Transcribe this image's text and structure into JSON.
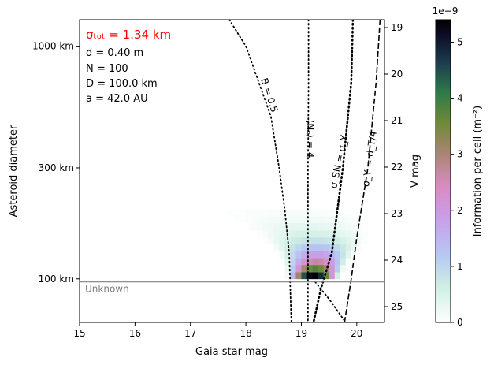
{
  "chart_data": {
    "type": "heatmap",
    "xlabel": "Gaia star mag",
    "ylabel": "Asteroid diameter",
    "right_ylabel": "V mag",
    "colorbar_label": "Information per cell (m⁻²)",
    "colorbar_exponent": "1e−9",
    "xlim": [
      15,
      20.5
    ],
    "xticks": [
      "15",
      "16",
      "17",
      "18",
      "19",
      "20"
    ],
    "ylim_km": [
      65,
      1300
    ],
    "y_log": true,
    "yticks": [
      {
        "value": 1000,
        "label": "1000 km"
      },
      {
        "value": 300,
        "label": "300 km"
      },
      {
        "value": 100,
        "label": "100 km"
      }
    ],
    "vmag_ticks": [
      "19",
      "20",
      "21",
      "22",
      "23",
      "24",
      "25"
    ],
    "colorbar_range": [
      0,
      5.4
    ],
    "colorbar_ticks": [
      "0",
      "1",
      "2",
      "3",
      "4",
      "5"
    ],
    "unknown_line": {
      "value_km": 97,
      "label": "Unknown"
    },
    "curves": [
      {
        "label": "B = 0.5",
        "style": "dotted",
        "points": [
          [
            17.7,
            1300
          ],
          [
            18.0,
            1000
          ],
          [
            18.45,
            500
          ],
          [
            18.6,
            300
          ],
          [
            18.7,
            200
          ],
          [
            18.78,
            130
          ],
          [
            18.82,
            65
          ]
        ]
      },
      {
        "label": "⟨Nₑ⟩ = 4",
        "style": "dotted",
        "points": [
          [
            19.13,
            1300
          ],
          [
            19.13,
            700
          ],
          [
            19.12,
            300
          ],
          [
            19.12,
            65
          ]
        ]
      },
      {
        "label": "σ_SN = σ_Y",
        "style": "dotted-bold",
        "points": [
          [
            19.93,
            1300
          ],
          [
            19.9,
            700
          ],
          [
            19.75,
            300
          ],
          [
            19.55,
            130
          ],
          [
            19.35,
            90
          ],
          [
            19.22,
            65
          ]
        ]
      },
      {
        "label": "σ_Y = d_T/4",
        "style": "dashed",
        "points": [
          [
            20.42,
            1300
          ],
          [
            20.35,
            700
          ],
          [
            20.2,
            300
          ],
          [
            20.0,
            150
          ],
          [
            19.9,
            100
          ],
          [
            19.78,
            65
          ]
        ]
      },
      {
        "label": "",
        "style": "dotted",
        "points": [
          [
            19.25,
            97
          ],
          [
            19.5,
            82
          ],
          [
            19.8,
            65
          ]
        ]
      }
    ],
    "heat_rows": [
      {
        "d": 100,
        "center": 19.22,
        "width": 0.5,
        "peak": 5.4
      },
      {
        "d": 107,
        "center": 19.25,
        "width": 0.55,
        "peak": 3.8
      },
      {
        "d": 115,
        "center": 19.27,
        "width": 0.62,
        "peak": 2.7
      },
      {
        "d": 123,
        "center": 19.28,
        "width": 0.72,
        "peak": 1.9
      },
      {
        "d": 132,
        "center": 19.28,
        "width": 0.85,
        "peak": 1.3
      },
      {
        "d": 141,
        "center": 19.25,
        "width": 0.98,
        "peak": 0.85
      },
      {
        "d": 151,
        "center": 19.2,
        "width": 1.1,
        "peak": 0.55
      },
      {
        "d": 162,
        "center": 19.1,
        "width": 1.25,
        "peak": 0.35
      },
      {
        "d": 174,
        "center": 19.0,
        "width": 1.4,
        "peak": 0.2
      },
      {
        "d": 186,
        "center": 18.85,
        "width": 1.55,
        "peak": 0.1
      }
    ]
  },
  "annotations": {
    "sigma_tot": "σₜₒₜ = 1.34 km",
    "d": "d = 0.40 m",
    "N": "N = 100",
    "D": "D = 100.0 km",
    "a": "a = 42.0 AU"
  },
  "colors": {
    "sigma_text": "#ff0000",
    "unknown_line": "#808080"
  }
}
